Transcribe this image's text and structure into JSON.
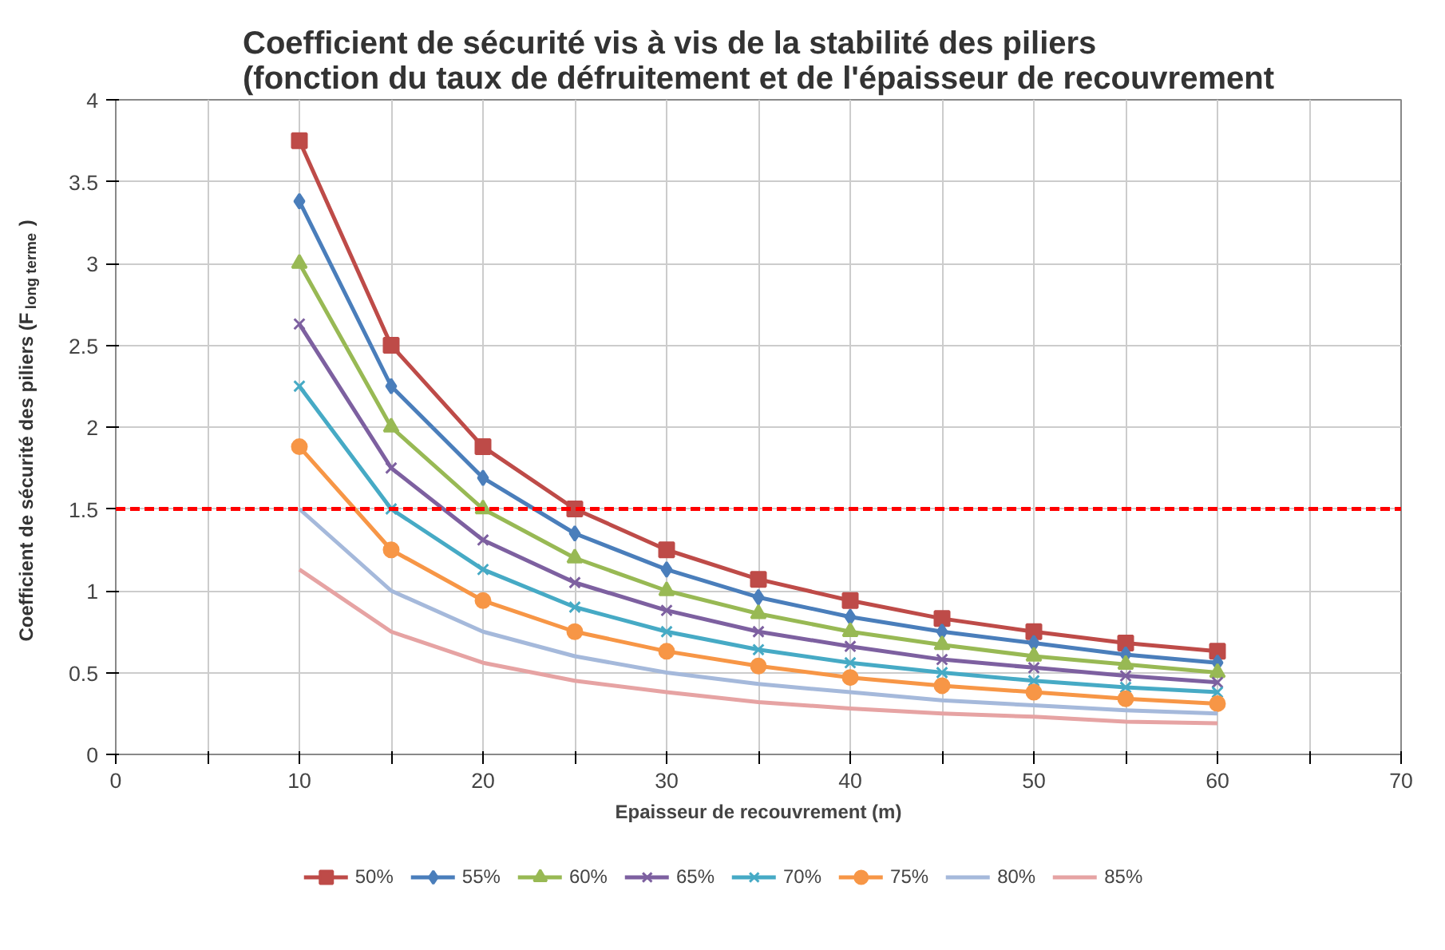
{
  "chart_data": {
    "type": "line",
    "title": "Coefficient de sécurité vis à vis de la stabilité des piliers\n(fonction du taux de défruitement et de l'épaisseur de recouvrement",
    "xlabel": "Epaisseur de recouvrement (m)",
    "ylabel": "Coefficient de sécurité des piliers (F$_{long terme}$)",
    "x": [
      10,
      15,
      20,
      25,
      30,
      35,
      40,
      45,
      50,
      55,
      60
    ],
    "xlim": [
      0,
      70
    ],
    "xticks": [
      0,
      {
        "value": 5,
        "label": null
      },
      10,
      {
        "value": 15,
        "label": null
      },
      20,
      {
        "value": 25,
        "label": null
      },
      30,
      {
        "value": 35,
        "label": null
      },
      40,
      {
        "value": 45,
        "label": null
      },
      50,
      {
        "value": 55,
        "label": null
      },
      60,
      {
        "value": 65,
        "label": null
      },
      70
    ],
    "ylim": [
      0,
      4
    ],
    "yticks": [
      0,
      0.5,
      1,
      1.5,
      2,
      2.5,
      3,
      3.5,
      4
    ],
    "grid": true,
    "legend": "bottom",
    "ref_lines": [
      {
        "axis": "y",
        "value": 1.5,
        "color": "#ff0000",
        "line_style": "dashed"
      }
    ],
    "series": [
      {
        "name": "50%",
        "color": "#be4b48",
        "marker": "square",
        "values": [
          3.75,
          2.5,
          1.88,
          1.5,
          1.25,
          1.07,
          0.94,
          0.83,
          0.75,
          0.68,
          0.63
        ]
      },
      {
        "name": "55%",
        "color": "#4a7ebb",
        "marker": "diamond",
        "values": [
          3.38,
          2.25,
          1.69,
          1.35,
          1.13,
          0.96,
          0.84,
          0.75,
          0.68,
          0.61,
          0.56
        ]
      },
      {
        "name": "60%",
        "color": "#98b954",
        "marker": "triangle",
        "values": [
          3,
          2,
          1.5,
          1.2,
          1,
          0.86,
          0.75,
          0.67,
          0.6,
          0.55,
          0.5
        ]
      },
      {
        "name": "65%",
        "color": "#7d60a0",
        "marker": "cross",
        "values": [
          2.63,
          1.75,
          1.31,
          1.05,
          0.88,
          0.75,
          0.66,
          0.58,
          0.53,
          0.48,
          0.44
        ]
      },
      {
        "name": "70%",
        "color": "#46aac5",
        "marker": "cross",
        "values": [
          2.25,
          1.5,
          1.13,
          0.9,
          0.75,
          0.64,
          0.56,
          0.5,
          0.45,
          0.41,
          0.38
        ]
      },
      {
        "name": "75%",
        "color": "#f79646",
        "marker": "circle",
        "values": [
          1.88,
          1.25,
          0.94,
          0.75,
          0.63,
          0.54,
          0.47,
          0.42,
          0.38,
          0.34,
          0.31
        ]
      },
      {
        "name": "80%",
        "color": "#a5b9db",
        "marker": "none",
        "values": [
          1.5,
          1,
          0.75,
          0.6,
          0.5,
          0.43,
          0.38,
          0.33,
          0.3,
          0.27,
          0.25
        ]
      },
      {
        "name": "85%",
        "color": "#e6a3a3",
        "marker": "none",
        "values": [
          1.13,
          0.75,
          0.56,
          0.45,
          0.38,
          0.32,
          0.28,
          0.25,
          0.23,
          0.2,
          0.19
        ]
      }
    ]
  }
}
